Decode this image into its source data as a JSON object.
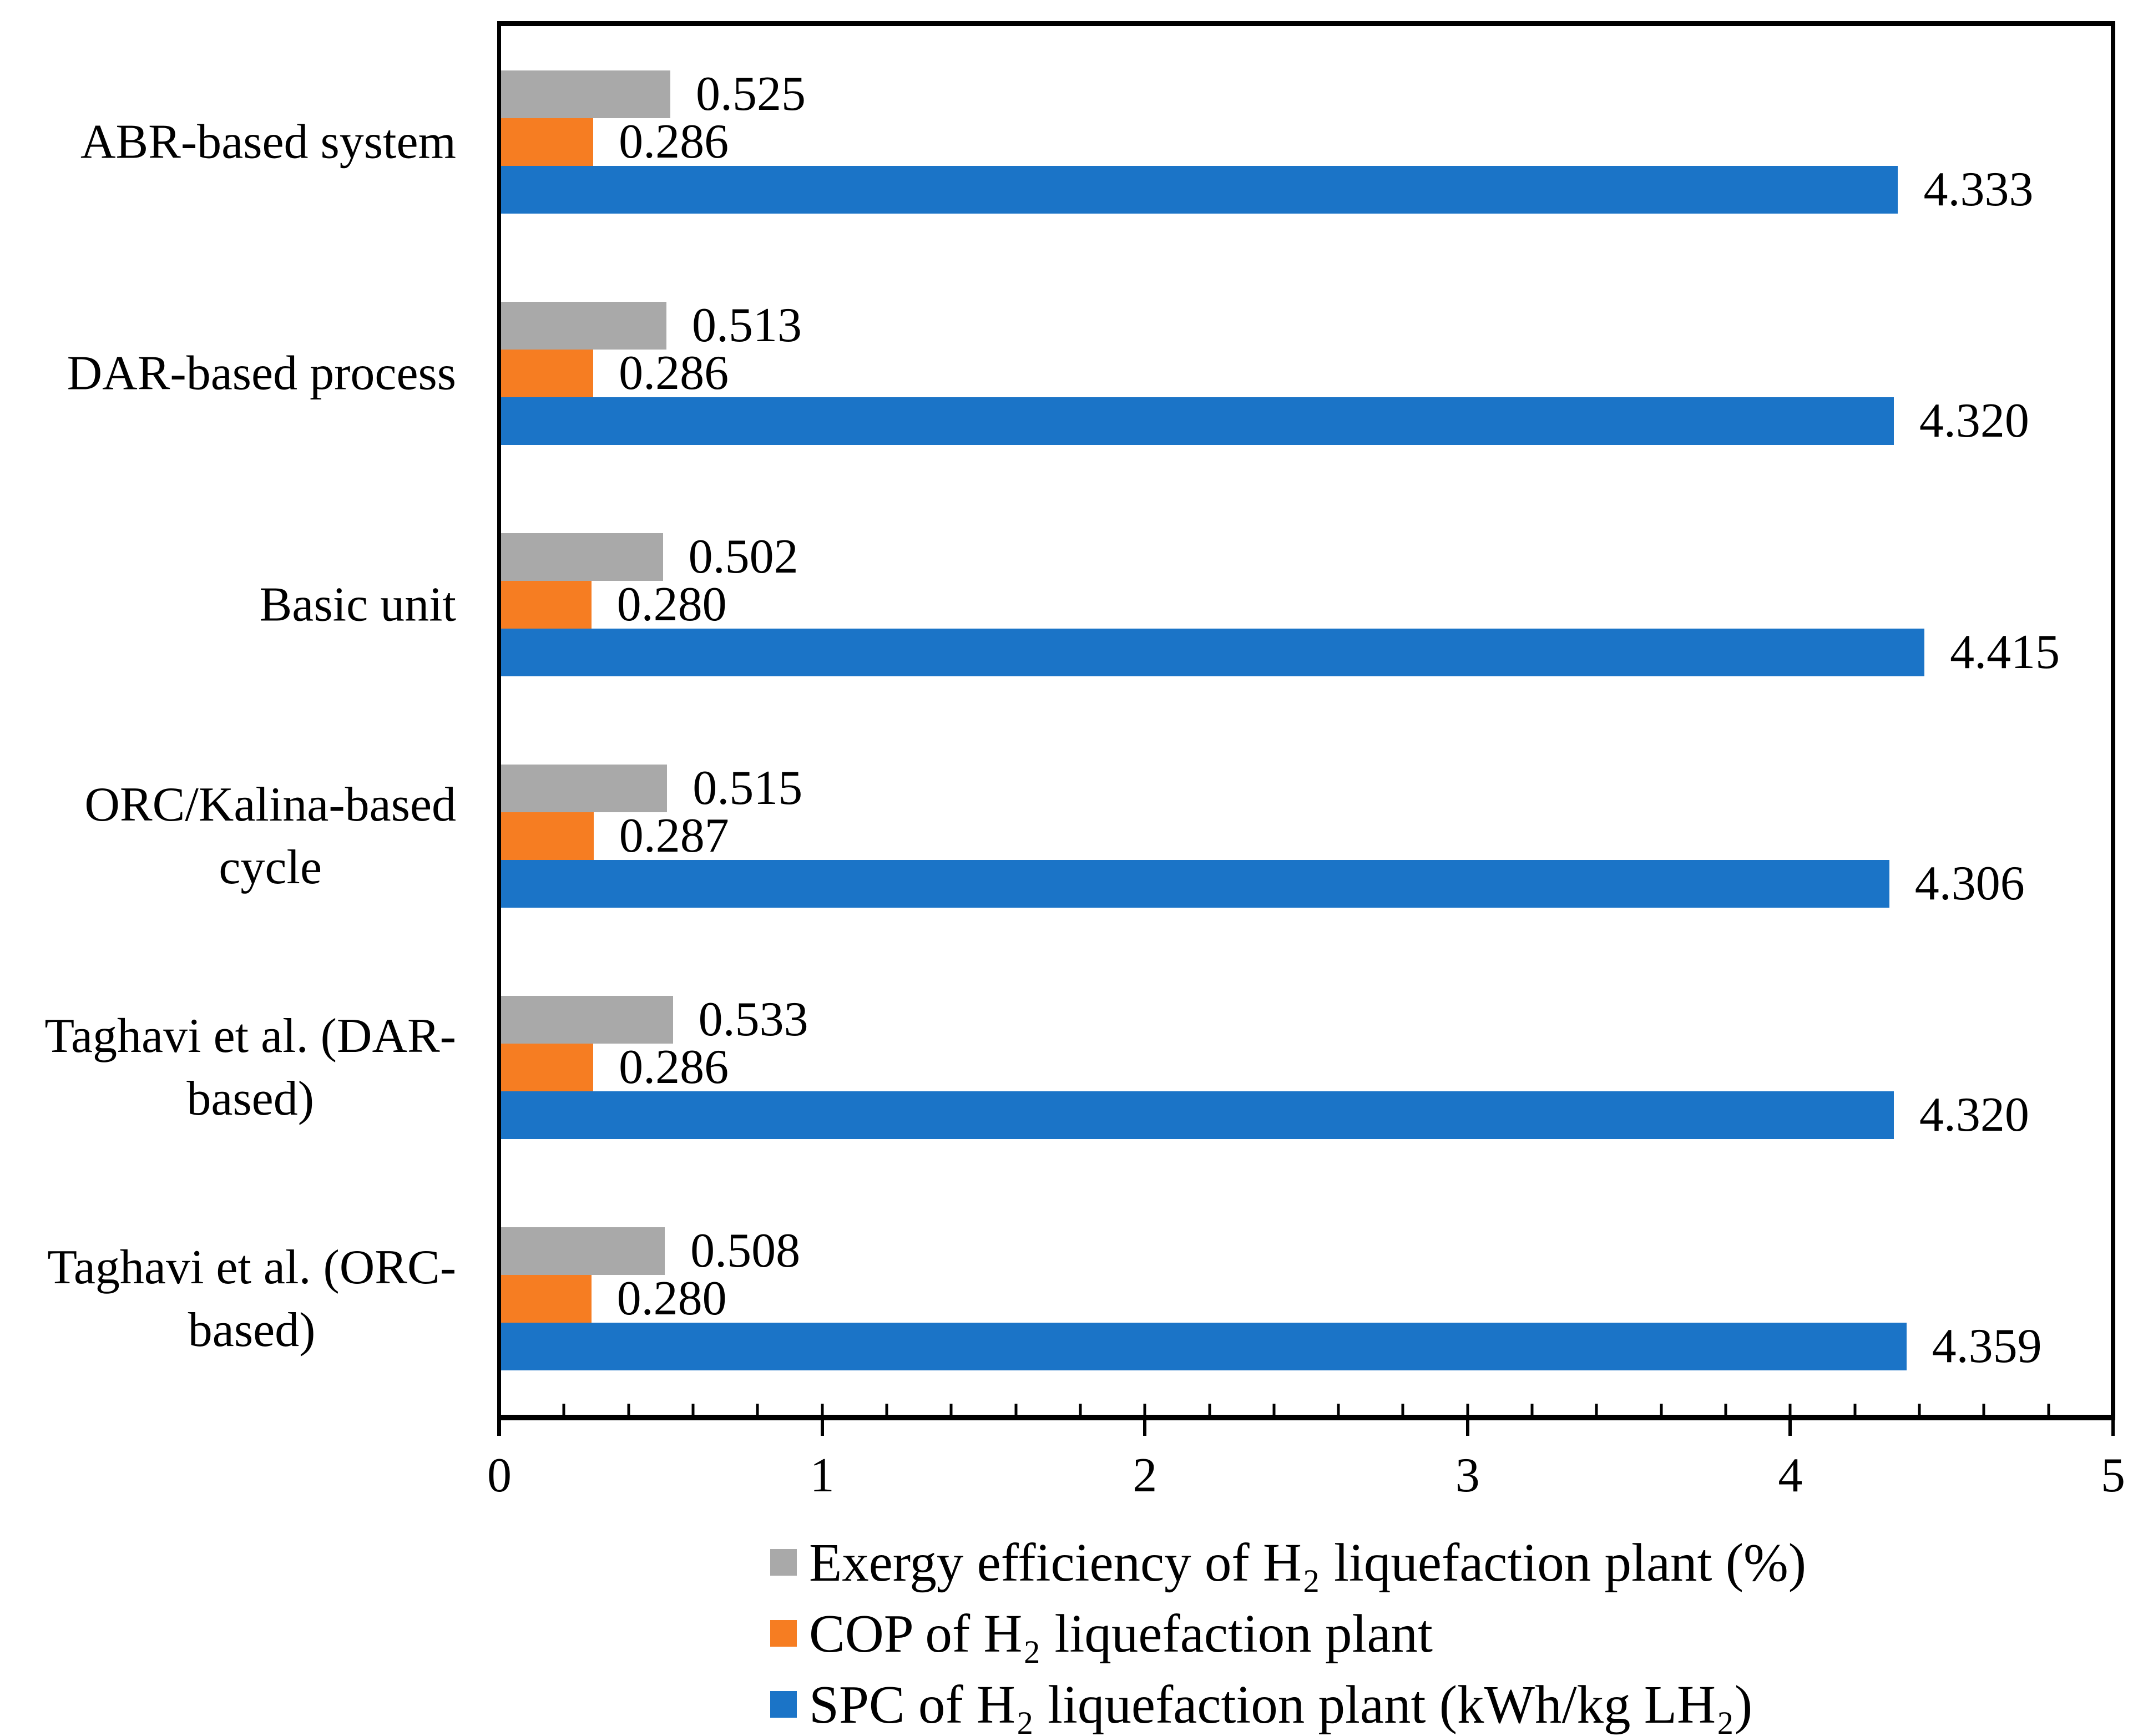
{
  "chart_data": {
    "type": "bar",
    "orientation": "horizontal",
    "title": "",
    "xlabel": "",
    "ylabel": "",
    "xlim": [
      0,
      5
    ],
    "xticks": [
      0,
      1,
      2,
      3,
      4,
      5
    ],
    "minor_tick_step": 0.2,
    "value_decimals": 3,
    "grid": false,
    "legend_position": "bottom",
    "background_color": "#FFFFFF",
    "axis_color": "#000000",
    "categories": [
      "ABR-based system",
      "DAR-based process",
      "Basic unit",
      "ORC/Kalina-based cycle",
      "Taghavi et al. (DAR-based)",
      "Taghavi et al. (ORC-based)"
    ],
    "category_lines": [
      [
        "ABR-based system"
      ],
      [
        "DAR-based process"
      ],
      [
        "Basic unit"
      ],
      [
        "ORC/Kalina-based",
        "cycle"
      ],
      [
        "Taghavi et al. (DAR-",
        "based)"
      ],
      [
        "Taghavi et al. (ORC-",
        "based)"
      ]
    ],
    "series": [
      {
        "key": "exergy",
        "name": "Exergy efficiency of H₂ liquefaction plant (%)",
        "color": "#A9A9A9",
        "values": [
          0.525,
          0.513,
          0.502,
          0.515,
          0.533,
          0.508
        ]
      },
      {
        "key": "cop",
        "name": "COP of H₂ liquefaction plant",
        "color": "#F67D22",
        "values": [
          0.286,
          0.286,
          0.28,
          0.287,
          0.286,
          0.28
        ]
      },
      {
        "key": "spc",
        "name": "SPC of H₂ liquefaction plant (kWh/kg LH₂)",
        "color": "#1B74C7",
        "values": [
          4.333,
          4.32,
          4.415,
          4.306,
          4.32,
          4.359
        ]
      }
    ]
  }
}
